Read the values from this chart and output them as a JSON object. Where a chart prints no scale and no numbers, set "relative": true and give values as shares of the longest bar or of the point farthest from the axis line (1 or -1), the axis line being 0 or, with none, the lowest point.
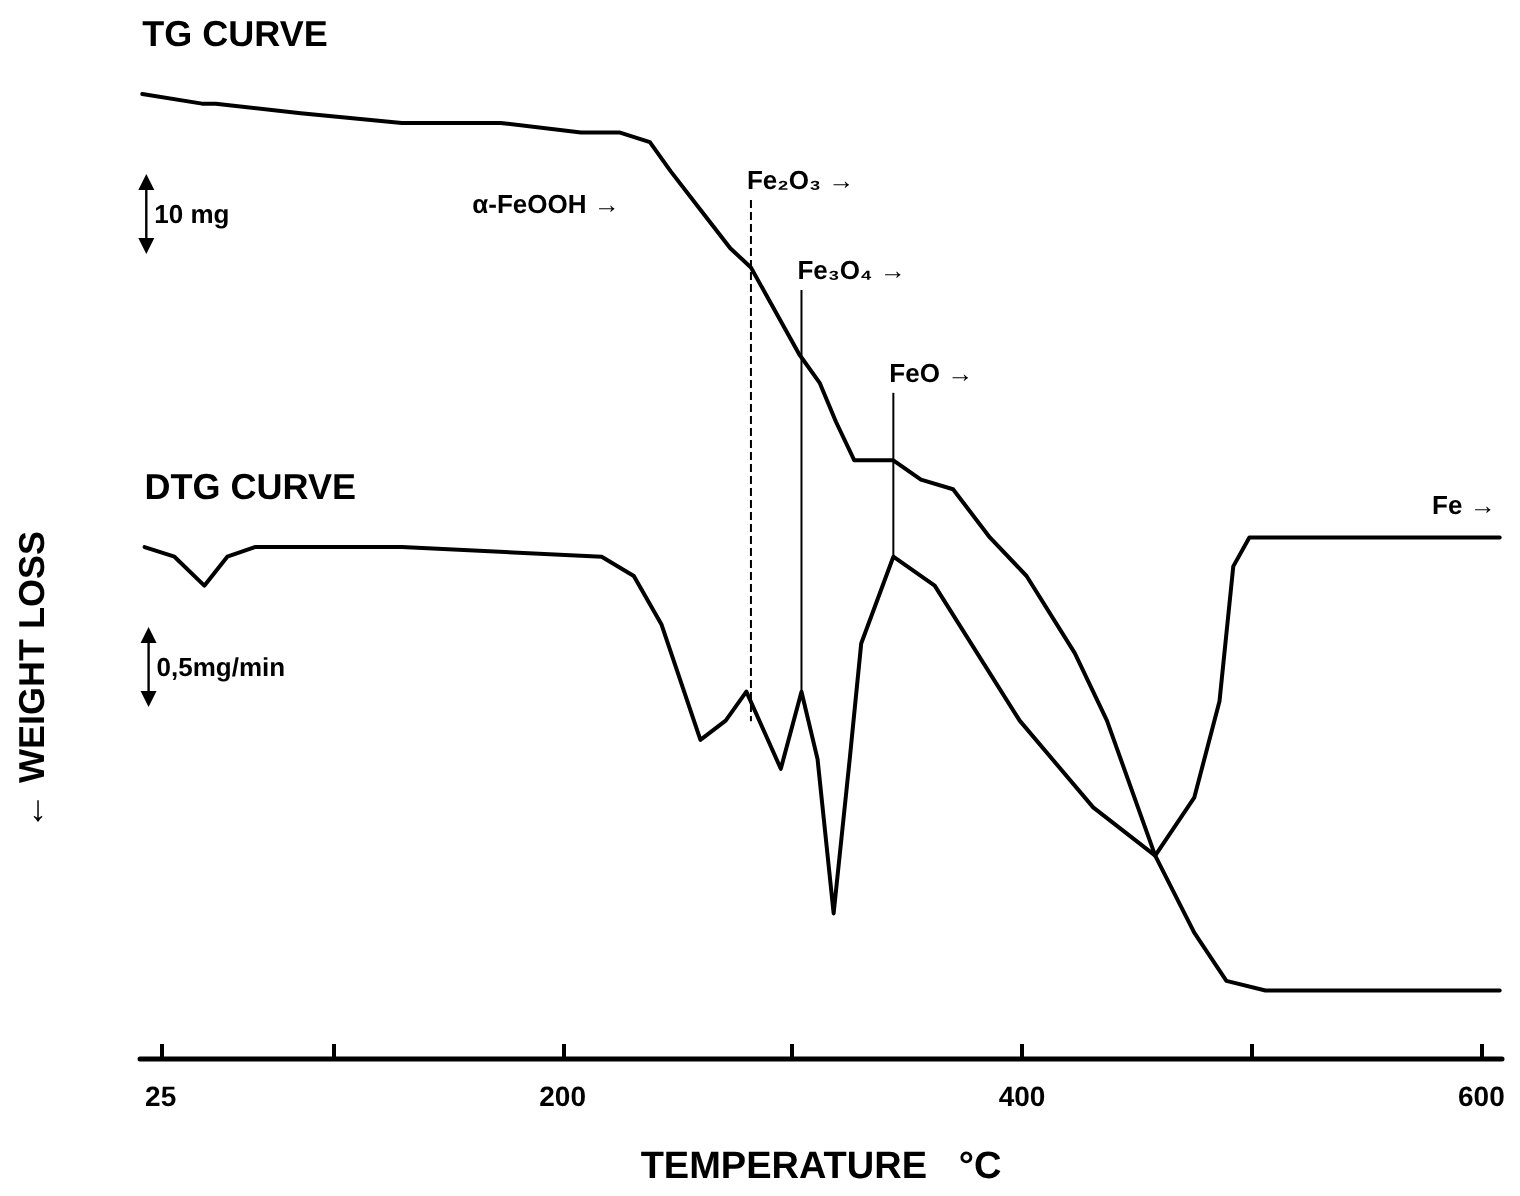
{
  "chart_data": {
    "type": "line",
    "relative": true,
    "xlabel": "TEMPERATURE   °C",
    "ylabel": "← WEIGHT LOSS",
    "xlim": [
      16,
      609
    ],
    "xticks": [
      25,
      {
        "value": 100,
        "label": null
      },
      200,
      {
        "value": 300,
        "label": null
      },
      400,
      {
        "value": 500,
        "label": null
      },
      600
    ],
    "grid": false,
    "legend": false,
    "marker": "none",
    "line_style": "solid",
    "series": [
      {
        "name": "TG CURVE",
        "color": "#000000",
        "x": [
          17,
          43,
          49,
          86,
          130,
          173,
          208,
          225,
          238,
          247,
          260,
          273,
          282,
          303,
          312,
          319,
          327,
          344,
          356,
          370,
          386,
          402,
          423,
          437,
          458,
          475,
          489,
          506,
          550,
          608
        ],
        "values": [
          1,
          0.99,
          0.99,
          0.98,
          0.97,
          0.97,
          0.96,
          0.96,
          0.95,
          0.92,
          0.88,
          0.84,
          0.82,
          0.73,
          0.7,
          0.66,
          0.62,
          0.62,
          0.6,
          0.59,
          0.54,
          0.5,
          0.42,
          0.35,
          0.21,
          0.13,
          0.08,
          0.07,
          0.07,
          0.07
        ]
      },
      {
        "name": "DTG CURVE",
        "color": "#000000",
        "x": [
          18,
          31,
          44,
          54,
          66,
          130,
          217,
          231,
          243,
          260,
          271,
          280,
          295,
          304,
          311,
          318,
          325,
          330,
          344,
          362,
          399,
          431,
          458,
          475,
          486,
          492,
          499,
          550,
          608
        ],
        "values": [
          0.53,
          0.52,
          0.49,
          0.52,
          0.53,
          0.53,
          0.52,
          0.5,
          0.45,
          0.33,
          0.35,
          0.38,
          0.3,
          0.38,
          0.31,
          0.15,
          0.31,
          0.43,
          0.52,
          0.49,
          0.35,
          0.26,
          0.21,
          0.27,
          0.37,
          0.51,
          0.54,
          0.54,
          0.54
        ]
      }
    ],
    "ref_lines": [
      {
        "axis": "x",
        "value": 282,
        "label": "Fe₂O₃ →",
        "line_style": "dashed"
      },
      {
        "axis": "x",
        "value": 304,
        "label": "Fe₃O₄ →",
        "line_style": "solid"
      },
      {
        "axis": "x",
        "value": 344,
        "label": "FeO →",
        "line_style": "solid"
      }
    ],
    "annotations": [
      "10 mg",
      "0,5mg/min",
      "α-FeOOH →",
      "Fe →"
    ]
  }
}
